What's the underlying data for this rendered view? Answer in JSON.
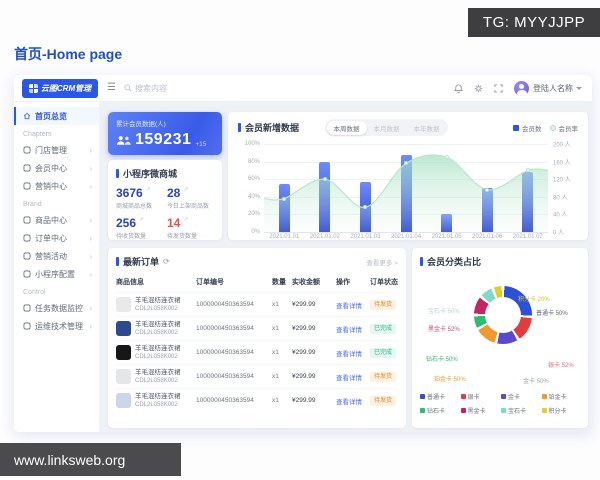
{
  "overlay": {
    "tg_label": "TG: MYYJJPP",
    "watermark": "www.linksweb.org"
  },
  "page_title": "首页-Home page",
  "topbar": {
    "logo_text": "云图CRM管理",
    "search_placeholder": "搜索内容",
    "user_name": "登陆人名称",
    "icons": [
      "hamburger-menu-icon",
      "search-icon",
      "bell-icon",
      "gear-icon",
      "fullscreen-icon",
      "chevron-down-icon"
    ]
  },
  "sidebar": {
    "items": [
      {
        "type": "item",
        "key": "home",
        "label": "首页总览",
        "icon": "home-icon",
        "active": true,
        "arrow": false
      },
      {
        "type": "section",
        "label": "Chapters"
      },
      {
        "type": "item",
        "key": "store",
        "label": "门店管理",
        "icon": "store-icon",
        "arrow": true
      },
      {
        "type": "item",
        "key": "member",
        "label": "会员中心",
        "icon": "member-icon",
        "arrow": true
      },
      {
        "type": "item",
        "key": "marketing",
        "label": "营销中心",
        "icon": "marketing-icon",
        "arrow": true
      },
      {
        "type": "section",
        "label": "Brand"
      },
      {
        "type": "item",
        "key": "goods",
        "label": "商品中心",
        "icon": "goods-icon",
        "arrow": true
      },
      {
        "type": "item",
        "key": "order",
        "label": "订单中心",
        "icon": "order-icon",
        "arrow": true
      },
      {
        "type": "item",
        "key": "activity",
        "label": "营销活动",
        "icon": "activity-icon",
        "arrow": true
      },
      {
        "type": "item",
        "key": "miniapp",
        "label": "小程序配置",
        "icon": "miniapp-icon",
        "arrow": true
      },
      {
        "type": "section",
        "label": "Control"
      },
      {
        "type": "item",
        "key": "monitor",
        "label": "任务数据监控",
        "icon": "monitor-icon",
        "arrow": true
      },
      {
        "type": "item",
        "key": "ops",
        "label": "运维技术管理",
        "icon": "ops-icon",
        "arrow": true
      }
    ]
  },
  "member_card": {
    "title": "累计会员数据(人)",
    "value": "159231",
    "delta": "+15"
  },
  "mall_stats": {
    "title": "小程序微商城",
    "stats": [
      {
        "value": "3676",
        "label": "商城商品总数",
        "color": "blue"
      },
      {
        "value": "28",
        "label": "今日上架商品数",
        "color": "blue"
      },
      {
        "value": "256",
        "label": "待收货数量",
        "color": "blue"
      },
      {
        "value": "14",
        "label": "待发货数量",
        "color": "red"
      }
    ]
  },
  "chart_data": {
    "type": "bar",
    "title": "会员新增数据",
    "tabs": [
      "本周数据",
      "本月数据",
      "本年数据"
    ],
    "active_tab": "本周数据",
    "legend": [
      {
        "name": "会员数",
        "color": "#2f54d6",
        "shape": "square"
      },
      {
        "name": "会员率",
        "color": "#b4e0c6",
        "shape": "circle"
      }
    ],
    "categories": [
      "2021.01.01",
      "2021.01.02",
      "2021.01.03",
      "2021.01.04",
      "2021.01.05",
      "2021.01.06",
      "2021.01.07"
    ],
    "series": [
      {
        "name": "会员数",
        "type": "bar",
        "axis": "right",
        "unit": "人",
        "values": [
          110,
          160,
          114,
          176,
          40,
          100,
          136
        ]
      },
      {
        "name": "会员率",
        "type": "area",
        "axis": "left",
        "unit": "%",
        "values": [
          38,
          60,
          28,
          78,
          85,
          48,
          70
        ]
      }
    ],
    "left_axis": {
      "ticks": [
        "100%",
        "80%",
        "60%",
        "40%",
        "20%",
        "0%"
      ],
      "min": 0,
      "max": 100
    },
    "right_axis": {
      "ticks": [
        "200 人",
        "160 人",
        "120 人",
        "80 人",
        "40 人",
        "0 人"
      ],
      "min": 0,
      "max": 200
    },
    "grid": true,
    "legend_position": "top-right"
  },
  "orders": {
    "title": "最新订单",
    "more_label": "查看更多 >",
    "action_label": "查看详情",
    "columns": [
      "商品信息",
      "订单编号",
      "数量",
      "实收金额",
      "操作",
      "订单状态"
    ],
    "rows": [
      {
        "name": "羊毛混纺连衣裙",
        "sku": "CDL2L058K002",
        "order_no": "1000000450363594",
        "qty": "x1",
        "amount": "¥299.99",
        "status": "待发货",
        "status_type": "orange",
        "thumb_color": "#e9e9ec"
      },
      {
        "name": "羊毛混纺连衣裙",
        "sku": "CDL2L058K002",
        "order_no": "1000000450363594",
        "qty": "x1",
        "amount": "¥299.99",
        "status": "已完成",
        "status_type": "green",
        "thumb_color": "#2c4a8c"
      },
      {
        "name": "羊毛混纺连衣裙",
        "sku": "CDL2L058K002",
        "order_no": "1000000450363594",
        "qty": "x1",
        "amount": "¥299.99",
        "status": "已完成",
        "status_type": "green",
        "thumb_color": "#17171a"
      },
      {
        "name": "羊毛混纺连衣裙",
        "sku": "CDL2L058K002",
        "order_no": "1000000450363594",
        "qty": "x1",
        "amount": "¥299.99",
        "status": "待发货",
        "status_type": "orange",
        "thumb_color": "#e4e6ea"
      },
      {
        "name": "羊毛混纺连衣裙",
        "sku": "CDL2L058K002",
        "order_no": "1000000450363594",
        "qty": "x1",
        "amount": "¥299.99",
        "status": "待发货",
        "status_type": "orange",
        "thumb_color": "#cdd5ea"
      }
    ]
  },
  "donut": {
    "title": "会员分类占比",
    "segments": [
      {
        "label": "普通卡",
        "pct": "50%",
        "color": "#2d50d8",
        "label_color": "#5c6575",
        "sweep": 26
      },
      {
        "label": "银卡",
        "pct": "52%",
        "color": "#e23c3c",
        "label_color": "#f06a6a",
        "sweep": 15
      },
      {
        "label": "金卡",
        "pct": "50%",
        "color": "#5a48cf",
        "label_color": "#9aa3b2",
        "sweep": 13
      },
      {
        "label": "铂金卡",
        "pct": "50%",
        "color": "#f2992e",
        "label_color": "#f2992e",
        "sweep": 13
      },
      {
        "label": "钻石卡",
        "pct": "50%",
        "color": "#2cbd6e",
        "label_color": "#2cbd6e",
        "sweep": 8
      },
      {
        "label": "黑金卡",
        "pct": "52%",
        "color": "#c42560",
        "label_color": "#d84a72",
        "sweep": 11
      },
      {
        "label": "宝石卡",
        "pct": "50%",
        "color": "#7fd9c8",
        "label_color": "#bfd4d8",
        "sweep": 8
      },
      {
        "label": "积分卡",
        "pct": "20%",
        "color": "#e3cf2a",
        "label_color": "#d9c62f",
        "sweep": 6
      }
    ]
  }
}
